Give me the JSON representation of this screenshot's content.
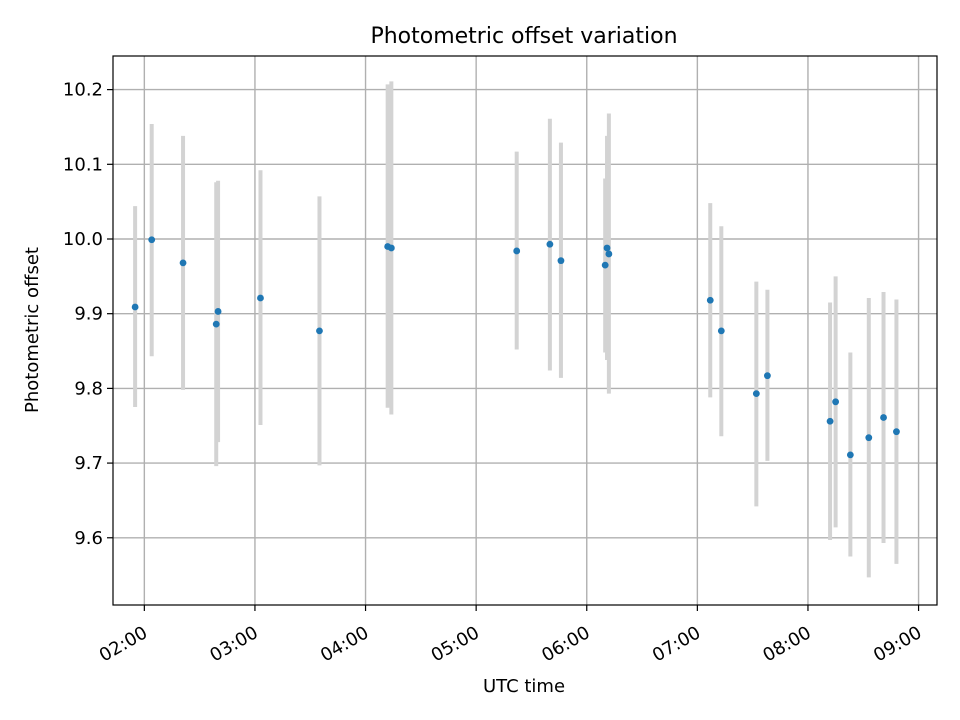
{
  "chart_data": {
    "type": "scatter",
    "title": "Photometric offset variation",
    "xlabel": "UTC time",
    "ylabel": "Photometric offset",
    "xlim": [
      "01:43",
      "09:10"
    ],
    "ylim": [
      9.51,
      10.245
    ],
    "x_ticks": [
      "02:00",
      "03:00",
      "04:00",
      "05:00",
      "06:00",
      "07:00",
      "08:00",
      "09:00"
    ],
    "y_ticks": [
      9.6,
      9.7,
      9.8,
      9.9,
      10.0,
      10.1,
      10.2
    ],
    "y_tick_labels": [
      "9.6",
      "9.7",
      "9.8",
      "9.9",
      "10.0",
      "10.1",
      "10.2"
    ],
    "grid": true,
    "series": [
      {
        "marker_color": "#1f77b4",
        "errorbar_color": "#d3d3d3",
        "points": [
          {
            "x": "01:55",
            "y": 9.909,
            "ylow": 9.775,
            "yhigh": 10.044
          },
          {
            "x": "02:04",
            "y": 9.999,
            "ylow": 9.843,
            "yhigh": 10.154
          },
          {
            "x": "02:21",
            "y": 9.968,
            "ylow": 9.798,
            "yhigh": 10.138
          },
          {
            "x": "02:39",
            "y": 9.886,
            "ylow": 9.696,
            "yhigh": 10.076
          },
          {
            "x": "02:40",
            "y": 9.903,
            "ylow": 9.728,
            "yhigh": 10.078
          },
          {
            "x": "03:03",
            "y": 9.921,
            "ylow": 9.751,
            "yhigh": 10.092
          },
          {
            "x": "03:35",
            "y": 9.877,
            "ylow": 9.697,
            "yhigh": 10.057
          },
          {
            "x": "04:12",
            "y": 9.99,
            "ylow": 9.774,
            "yhigh": 10.207
          },
          {
            "x": "04:14",
            "y": 9.988,
            "ylow": 9.765,
            "yhigh": 10.211
          },
          {
            "x": "05:22",
            "y": 9.984,
            "ylow": 9.852,
            "yhigh": 10.117
          },
          {
            "x": "05:40",
            "y": 9.993,
            "ylow": 9.824,
            "yhigh": 10.161
          },
          {
            "x": "05:46",
            "y": 9.971,
            "ylow": 9.814,
            "yhigh": 10.129
          },
          {
            "x": "06:10",
            "y": 9.965,
            "ylow": 9.848,
            "yhigh": 10.081
          },
          {
            "x": "06:11",
            "y": 9.988,
            "ylow": 9.838,
            "yhigh": 10.138
          },
          {
            "x": "06:12",
            "y": 9.98,
            "ylow": 9.793,
            "yhigh": 10.168
          },
          {
            "x": "07:07",
            "y": 9.918,
            "ylow": 9.788,
            "yhigh": 10.048
          },
          {
            "x": "07:13",
            "y": 9.877,
            "ylow": 9.736,
            "yhigh": 10.017
          },
          {
            "x": "07:32",
            "y": 9.793,
            "ylow": 9.642,
            "yhigh": 9.943
          },
          {
            "x": "07:38",
            "y": 9.817,
            "ylow": 9.703,
            "yhigh": 9.932
          },
          {
            "x": "08:12",
            "y": 9.756,
            "ylow": 9.597,
            "yhigh": 9.915
          },
          {
            "x": "08:15",
            "y": 9.782,
            "ylow": 9.614,
            "yhigh": 9.95
          },
          {
            "x": "08:23",
            "y": 9.711,
            "ylow": 9.575,
            "yhigh": 9.848
          },
          {
            "x": "08:33",
            "y": 9.734,
            "ylow": 9.547,
            "yhigh": 9.921
          },
          {
            "x": "08:41",
            "y": 9.761,
            "ylow": 9.593,
            "yhigh": 9.929
          },
          {
            "x": "08:48",
            "y": 9.742,
            "ylow": 9.565,
            "yhigh": 9.919
          }
        ]
      }
    ]
  }
}
